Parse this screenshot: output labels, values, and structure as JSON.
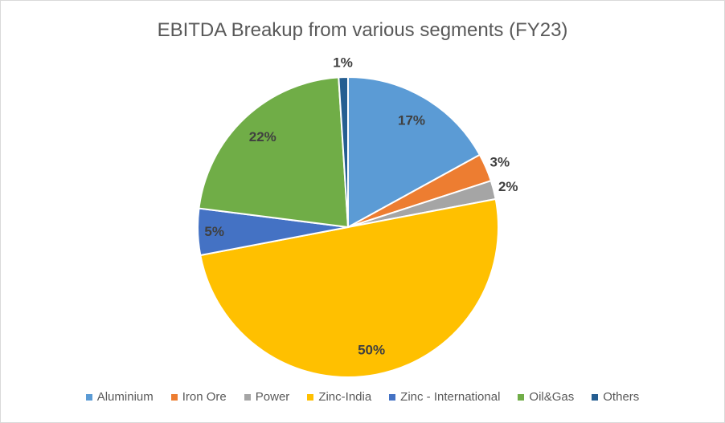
{
  "chart_data": {
    "type": "pie",
    "title": "EBITDA Breakup from various segments (FY23)",
    "start_angle": "12 o'clock, clockwise",
    "legend_position": "bottom",
    "slices": [
      {
        "label": "Aluminium",
        "value": 17,
        "data_label": "17%",
        "color": "#5B9BD5"
      },
      {
        "label": "Iron Ore",
        "value": 3,
        "data_label": "3%",
        "color": "#ED7D31"
      },
      {
        "label": "Power",
        "value": 2,
        "data_label": "2%",
        "color": "#A5A5A5"
      },
      {
        "label": "Zinc-India",
        "value": 50,
        "data_label": "50%",
        "color": "#FFC000"
      },
      {
        "label": "Zinc - International",
        "value": 5,
        "data_label": "5%",
        "color": "#4472C4"
      },
      {
        "label": "Oil&Gas",
        "value": 22,
        "data_label": "22%",
        "color": "#70AD47"
      },
      {
        "label": "Others",
        "value": 1,
        "data_label": "1%",
        "color": "#255E91"
      }
    ]
  }
}
